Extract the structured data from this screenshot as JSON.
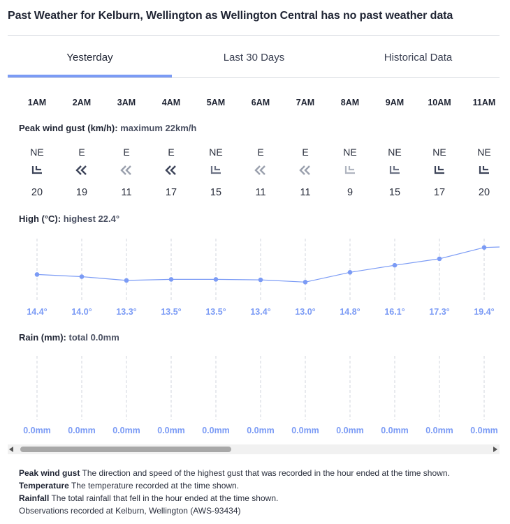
{
  "page": {
    "title": "Past Weather for Kelburn, Wellington as Wellington Central has no past weather data"
  },
  "tabs": [
    {
      "label": "Yesterday",
      "active": true
    },
    {
      "label": "Last 30 Days",
      "active": false
    },
    {
      "label": "Historical Data",
      "active": false
    }
  ],
  "hours": [
    "1AM",
    "2AM",
    "3AM",
    "4AM",
    "5AM",
    "6AM",
    "7AM",
    "8AM",
    "9AM",
    "10AM",
    "11AM"
  ],
  "wind": {
    "label": "Peak wind gust (km/h):",
    "summary": "maximum 22km/h",
    "directions": [
      "NE",
      "E",
      "E",
      "E",
      "NE",
      "E",
      "E",
      "NE",
      "NE",
      "NE",
      "NE"
    ],
    "speeds": [
      "20",
      "19",
      "11",
      "17",
      "15",
      "11",
      "11",
      "9",
      "15",
      "17",
      "20"
    ],
    "arrow_icons": [
      "ne-arrow-icon",
      "e-arrow-icon",
      "e-arrow-icon",
      "e-arrow-icon",
      "ne-arrow-icon",
      "e-arrow-icon",
      "e-arrow-icon",
      "ne-arrow-icon",
      "ne-arrow-icon",
      "ne-arrow-icon",
      "ne-arrow-icon"
    ],
    "arrow_shades": [
      "#3d4459",
      "#3d4459",
      "#9aa0ad",
      "#3d4459",
      "#6d7385",
      "#9aa0ad",
      "#9aa0ad",
      "#b0b5c0",
      "#6d7385",
      "#3d4459",
      "#3d4459"
    ]
  },
  "temperature": {
    "label": "High (°C):",
    "summary": "highest 22.4°",
    "values": [
      14.4,
      14.0,
      13.3,
      13.5,
      13.5,
      13.4,
      13.0,
      14.8,
      16.1,
      17.3,
      19.4
    ],
    "display": [
      "14.4°",
      "14.0°",
      "13.3°",
      "13.5°",
      "13.5°",
      "13.4°",
      "13.0°",
      "14.8°",
      "16.1°",
      "17.3°",
      "19.4°"
    ],
    "color": "#7b9bf5"
  },
  "rain": {
    "label": "Rain (mm):",
    "summary": "total 0.0mm",
    "display": [
      "0.0mm",
      "0.0mm",
      "0.0mm",
      "0.0mm",
      "0.0mm",
      "0.0mm",
      "0.0mm",
      "0.0mm",
      "0.0mm",
      "0.0mm",
      "0.0mm"
    ]
  },
  "notes": {
    "gust_term": "Peak wind gust",
    "gust_text": "The direction and speed of the highest gust that was recorded in the hour ended at the time shown.",
    "temp_term": "Temperature",
    "temp_text": "The temperature recorded at the time shown.",
    "rain_term": "Rainfall",
    "rain_text": "The total rainfall that fell in the hour ended at the time shown.",
    "observations": "Observations recorded at Kelburn, Wellington (AWS-93434)"
  },
  "colors": {
    "accent": "#7b9bf5",
    "text": "#1f2433",
    "divider": "#d7dae0"
  }
}
